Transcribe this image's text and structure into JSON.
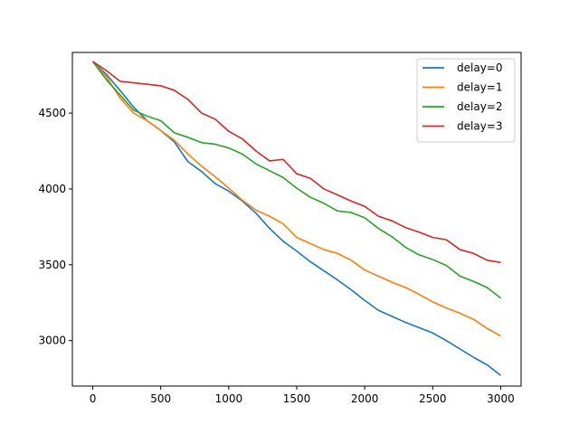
{
  "chart_data": {
    "type": "line",
    "title": "",
    "xlabel": "",
    "ylabel": "",
    "xlim": [
      -150,
      3150
    ],
    "ylim": [
      2700,
      4900
    ],
    "xticks": [
      0,
      500,
      1000,
      1500,
      2000,
      2500,
      3000
    ],
    "yticks": [
      3000,
      3500,
      4000,
      4500
    ],
    "legend_position": "top-right",
    "grid": false,
    "series": [
      {
        "name": "delay=0",
        "color": "#1f77b4",
        "x": [
          0,
          100,
          200,
          300,
          400,
          500,
          600,
          700,
          800,
          900,
          1000,
          1100,
          1200,
          1300,
          1400,
          1500,
          1600,
          1700,
          1800,
          1900,
          2000,
          2100,
          2200,
          2300,
          2400,
          2500,
          2600,
          2700,
          2800,
          2900,
          3000
        ],
        "y": [
          4840,
          4755,
          4650,
          4540,
          4450,
          4385,
          4310,
          4180,
          4115,
          4035,
          3985,
          3920,
          3840,
          3740,
          3655,
          3590,
          3520,
          3460,
          3400,
          3335,
          3265,
          3200,
          3160,
          3120,
          3085,
          3050,
          3000,
          2945,
          2890,
          2840,
          2770
        ]
      },
      {
        "name": "delay=1",
        "color": "#ff7f0e",
        "x": [
          0,
          100,
          200,
          300,
          400,
          500,
          600,
          700,
          800,
          900,
          1000,
          1100,
          1200,
          1300,
          1400,
          1500,
          1600,
          1700,
          1800,
          1900,
          2000,
          2100,
          2200,
          2300,
          2400,
          2500,
          2600,
          2700,
          2800,
          2900,
          3000
        ],
        "y": [
          4840,
          4740,
          4600,
          4500,
          4450,
          4385,
          4320,
          4230,
          4150,
          4080,
          4005,
          3925,
          3860,
          3820,
          3770,
          3680,
          3640,
          3600,
          3575,
          3530,
          3465,
          3425,
          3385,
          3350,
          3305,
          3255,
          3215,
          3180,
          3140,
          3080,
          3030
        ]
      },
      {
        "name": "delay=2",
        "color": "#2ca02c",
        "x": [
          0,
          100,
          200,
          300,
          400,
          500,
          600,
          700,
          800,
          900,
          1000,
          1100,
          1200,
          1300,
          1400,
          1500,
          1600,
          1700,
          1800,
          1900,
          2000,
          2100,
          2200,
          2300,
          2400,
          2500,
          2600,
          2700,
          2800,
          2900,
          3000
        ],
        "y": [
          4840,
          4720,
          4620,
          4520,
          4480,
          4450,
          4370,
          4340,
          4305,
          4295,
          4270,
          4230,
          4165,
          4120,
          4075,
          4005,
          3945,
          3905,
          3855,
          3845,
          3810,
          3740,
          3685,
          3615,
          3565,
          3535,
          3495,
          3425,
          3390,
          3350,
          3280
        ]
      },
      {
        "name": "delay=3",
        "color": "#d62728",
        "x": [
          0,
          100,
          200,
          300,
          400,
          500,
          600,
          700,
          800,
          900,
          1000,
          1100,
          1200,
          1300,
          1400,
          1500,
          1600,
          1700,
          1800,
          1900,
          2000,
          2100,
          2200,
          2300,
          2400,
          2500,
          2600,
          2700,
          2800,
          2900,
          3000
        ],
        "y": [
          4840,
          4780,
          4710,
          4700,
          4690,
          4680,
          4650,
          4590,
          4500,
          4460,
          4380,
          4330,
          4250,
          4185,
          4195,
          4100,
          4070,
          4000,
          3960,
          3920,
          3885,
          3820,
          3790,
          3745,
          3715,
          3680,
          3665,
          3600,
          3575,
          3530,
          3515
        ]
      }
    ]
  }
}
